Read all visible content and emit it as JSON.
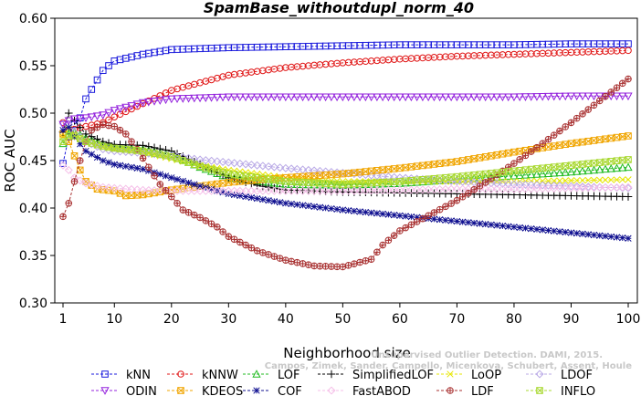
{
  "chart_data": {
    "type": "line",
    "title": "SpamBase_withoutdupl_norm_40",
    "xlabel": "Neighborhood size",
    "ylabel": "ROC AUC",
    "xlim": [
      1,
      100
    ],
    "ylim": [
      0.3,
      0.6
    ],
    "xticks": [
      1,
      10,
      20,
      30,
      40,
      50,
      60,
      70,
      80,
      90,
      100
    ],
    "yticks": [
      "0.30",
      "0.35",
      "0.40",
      "0.45",
      "0.50",
      "0.55",
      "0.60"
    ],
    "grid": false,
    "legend_position": "bottom",
    "watermark": [
      "Unsupervised Outlier Detection. DAMI, 2015.",
      "Campos, Zimek, Sander, Campello, Micenkova, Schubert, Assent, Houle"
    ],
    "series": [
      {
        "name": "kNN",
        "color": "#1a1adc",
        "marker": "square",
        "x": [
          1,
          2,
          3,
          4,
          5,
          6,
          8,
          10,
          15,
          20,
          30,
          40,
          50,
          60,
          70,
          80,
          90,
          100
        ],
        "y": [
          0.447,
          0.475,
          0.488,
          0.495,
          0.515,
          0.525,
          0.545,
          0.555,
          0.562,
          0.567,
          0.569,
          0.57,
          0.571,
          0.572,
          0.572,
          0.572,
          0.573,
          0.573
        ]
      },
      {
        "name": "kNNW",
        "color": "#e01515",
        "marker": "circle",
        "x": [
          1,
          2,
          3,
          5,
          8,
          10,
          15,
          20,
          25,
          30,
          40,
          50,
          60,
          70,
          80,
          90,
          100
        ],
        "y": [
          0.49,
          0.482,
          0.483,
          0.486,
          0.49,
          0.496,
          0.51,
          0.524,
          0.532,
          0.54,
          0.548,
          0.553,
          0.557,
          0.56,
          0.562,
          0.564,
          0.566
        ]
      },
      {
        "name": "LOF",
        "color": "#22bb22",
        "marker": "triangle-up",
        "x": [
          1,
          2,
          3,
          5,
          8,
          10,
          15,
          20,
          25,
          30,
          40,
          50,
          60,
          70,
          80,
          90,
          100
        ],
        "y": [
          0.468,
          0.478,
          0.48,
          0.474,
          0.467,
          0.464,
          0.462,
          0.456,
          0.443,
          0.432,
          0.425,
          0.424,
          0.426,
          0.43,
          0.434,
          0.438,
          0.443
        ]
      },
      {
        "name": "SimplifiedLOF",
        "color": "#000000",
        "marker": "plus",
        "x": [
          1,
          2,
          3,
          5,
          8,
          10,
          15,
          20,
          25,
          30,
          35,
          40,
          50,
          60,
          70,
          80,
          90,
          100
        ],
        "y": [
          0.48,
          0.5,
          0.492,
          0.478,
          0.47,
          0.467,
          0.466,
          0.46,
          0.446,
          0.432,
          0.424,
          0.419,
          0.417,
          0.416,
          0.415,
          0.414,
          0.413,
          0.412
        ]
      },
      {
        "name": "LoOP",
        "color": "#e6e600",
        "marker": "x",
        "x": [
          1,
          2,
          3,
          5,
          8,
          10,
          15,
          20,
          25,
          30,
          40,
          50,
          60,
          70,
          80,
          90,
          100
        ],
        "y": [
          0.475,
          0.483,
          0.478,
          0.47,
          0.464,
          0.462,
          0.459,
          0.452,
          0.445,
          0.44,
          0.432,
          0.428,
          0.428,
          0.428,
          0.428,
          0.429,
          0.43
        ]
      },
      {
        "name": "LDOF",
        "color": "#b9a9e6",
        "marker": "diamond",
        "x": [
          1,
          2,
          3,
          5,
          8,
          10,
          15,
          20,
          25,
          30,
          40,
          50,
          60,
          70,
          80,
          90,
          100
        ],
        "y": [
          0.489,
          0.488,
          0.48,
          0.47,
          0.462,
          0.46,
          0.458,
          0.455,
          0.451,
          0.448,
          0.442,
          0.437,
          0.432,
          0.428,
          0.425,
          0.423,
          0.421
        ]
      },
      {
        "name": "ODIN",
        "color": "#9422dd",
        "marker": "triangle-down",
        "x": [
          1,
          2,
          3,
          5,
          8,
          10,
          15,
          20,
          30,
          40,
          50,
          60,
          70,
          80,
          90,
          100
        ],
        "y": [
          0.488,
          0.492,
          0.494,
          0.495,
          0.498,
          0.503,
          0.511,
          0.515,
          0.517,
          0.517,
          0.517,
          0.517,
          0.517,
          0.517,
          0.518,
          0.518
        ]
      },
      {
        "name": "KDEOS",
        "color": "#f0a500",
        "marker": "square-x",
        "x": [
          1,
          2,
          3,
          4,
          5,
          7,
          10,
          12,
          15,
          20,
          30,
          40,
          50,
          60,
          70,
          80,
          90,
          100
        ],
        "y": [
          0.478,
          0.47,
          0.455,
          0.44,
          0.428,
          0.42,
          0.418,
          0.413,
          0.414,
          0.419,
          0.427,
          0.432,
          0.436,
          0.442,
          0.449,
          0.459,
          0.468,
          0.476
        ]
      },
      {
        "name": "COF",
        "color": "#101090",
        "marker": "star",
        "x": [
          1,
          2,
          3,
          5,
          8,
          10,
          15,
          20,
          25,
          30,
          40,
          50,
          60,
          70,
          80,
          90,
          100
        ],
        "y": [
          0.482,
          0.485,
          0.475,
          0.46,
          0.45,
          0.446,
          0.441,
          0.432,
          0.423,
          0.415,
          0.405,
          0.398,
          0.392,
          0.386,
          0.38,
          0.374,
          0.368
        ]
      },
      {
        "name": "FastABOD",
        "color": "#f5bfe8",
        "marker": "diamond",
        "x": [
          1,
          2,
          3,
          5,
          8,
          10,
          15,
          20,
          30,
          40,
          50,
          60,
          70,
          80,
          90,
          100
        ],
        "y": [
          0.445,
          0.44,
          0.432,
          0.426,
          0.422,
          0.421,
          0.419,
          0.418,
          0.418,
          0.418,
          0.418,
          0.419,
          0.42,
          0.42,
          0.421,
          0.422
        ]
      },
      {
        "name": "LDF",
        "color": "#a83030",
        "marker": "circle-plus",
        "x": [
          1,
          2,
          3,
          4,
          5,
          6,
          8,
          10,
          12,
          14,
          16,
          18,
          20,
          22,
          25,
          28,
          30,
          35,
          40,
          45,
          50,
          55,
          57,
          60,
          65,
          70,
          75,
          80,
          85,
          90,
          95,
          100
        ],
        "y": [
          0.391,
          0.405,
          0.428,
          0.45,
          0.47,
          0.482,
          0.488,
          0.486,
          0.478,
          0.462,
          0.443,
          0.425,
          0.412,
          0.398,
          0.39,
          0.38,
          0.37,
          0.355,
          0.345,
          0.339,
          0.338,
          0.346,
          0.361,
          0.376,
          0.392,
          0.408,
          0.427,
          0.447,
          0.468,
          0.49,
          0.513,
          0.536
        ]
      },
      {
        "name": "INFLO",
        "color": "#a8d830",
        "marker": "square-x",
        "x": [
          1,
          2,
          3,
          5,
          8,
          10,
          15,
          20,
          25,
          30,
          40,
          50,
          60,
          70,
          80,
          90,
          100
        ],
        "y": [
          0.47,
          0.476,
          0.476,
          0.47,
          0.465,
          0.463,
          0.46,
          0.454,
          0.444,
          0.436,
          0.428,
          0.425,
          0.428,
          0.433,
          0.439,
          0.445,
          0.451
        ]
      }
    ],
    "legend_rows": [
      [
        "kNN",
        "kNNW",
        "LOF",
        "SimplifiedLOF",
        "LoOP",
        "LDOF"
      ],
      [
        "ODIN",
        "KDEOS",
        "COF",
        "FastABOD",
        "LDF",
        "INFLO"
      ]
    ]
  }
}
